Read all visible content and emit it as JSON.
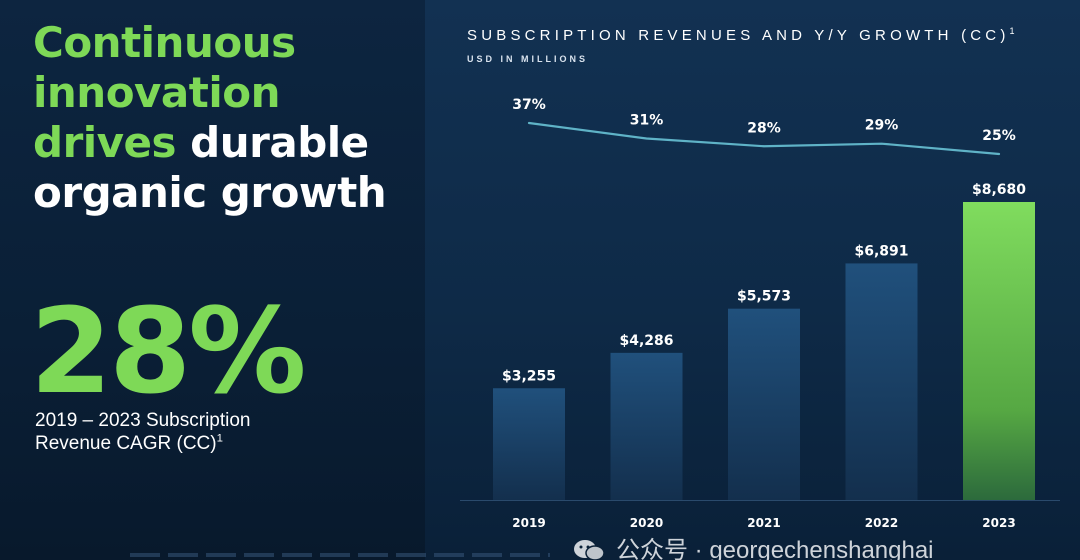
{
  "headline": {
    "green_part": "Continuous innovation drives",
    "white_part": "durable organic growth"
  },
  "stat": {
    "value": "28%",
    "caption_line1": "2019 – 2023 Subscription",
    "caption_line2": "Revenue CAGR (CC)",
    "footnote_mark": "1"
  },
  "chart_header": {
    "title": "SUBSCRIPTION REVENUES AND Y/Y GROWTH (CC)",
    "footnote_mark": "1",
    "subtitle": "USD IN MILLIONS"
  },
  "chart_data": {
    "type": "bar",
    "title": "SUBSCRIPTION REVENUES AND Y/Y GROWTH (CC)",
    "subtitle": "USD IN MILLIONS",
    "categories": [
      "2019",
      "2020",
      "2021",
      "2022",
      "2023"
    ],
    "series": [
      {
        "values": [
          3255,
          4286,
          5573,
          6891,
          8680
        ],
        "labels": [
          "$3,255",
          "$4,286",
          "$5,573",
          "$6,891",
          "$8,680"
        ],
        "kind": "bar"
      },
      {
        "values": [
          37,
          31,
          28,
          29,
          25
        ],
        "labels": [
          "37%",
          "31%",
          "28%",
          "29%",
          "25%"
        ],
        "kind": "line"
      }
    ],
    "ylim_bars": [
      0,
      10000
    ],
    "ylim_line": [
      0,
      100
    ],
    "grid": false,
    "legend": "none",
    "colors": {
      "bar": "#1d456e",
      "bar_highlight": "#7ed957",
      "line": "#5fb3c7",
      "text": "#ffffff"
    }
  },
  "watermark": {
    "text": "公众号 · georgechenshanghai"
  },
  "colors": {
    "accent_green": "#7ed957",
    "background": "#0c2137"
  }
}
